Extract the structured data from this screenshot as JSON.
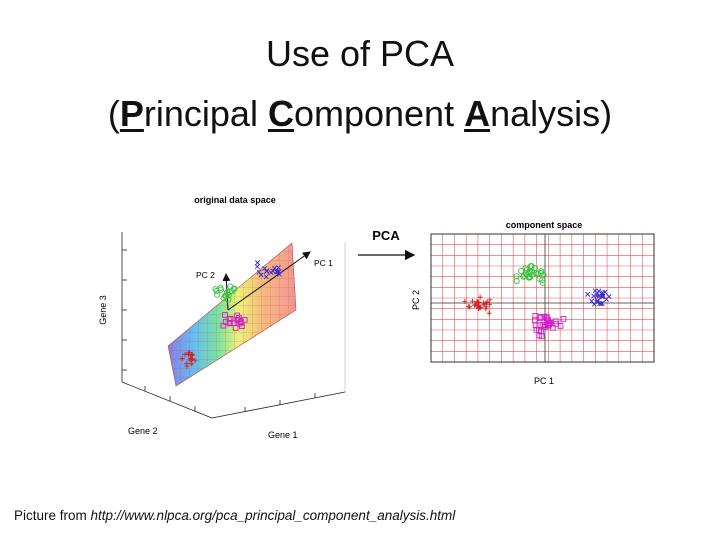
{
  "slide": {
    "title_line1": "Use of PCA",
    "title_paren_open": "(",
    "title_p_first": "P",
    "title_p_rest": "rincipal ",
    "title_c_first": "C",
    "title_c_rest": "omponent ",
    "title_a_first": "A",
    "title_a_rest": "nalysis)",
    "caption_prefix": "Picture from ",
    "caption_url": "http://www.nlpca.org/pca_principal_component_analysis.html"
  },
  "left_plot": {
    "title": "original data space",
    "axis_gene1": "Gene 1",
    "axis_gene2": "Gene 2",
    "axis_gene3": "Gene 3",
    "pc1_label": "PC 1",
    "pc2_label": "PC 2"
  },
  "arrow": {
    "label": "PCA"
  },
  "right_plot": {
    "title": "component space",
    "xlabel": "PC 1",
    "ylabel": "PC 2"
  },
  "colors": {
    "red": "#d62020",
    "green": "#35c43a",
    "magenta": "#d21ecb",
    "blue": "#3a2bd0",
    "grid": "#e25555"
  }
}
